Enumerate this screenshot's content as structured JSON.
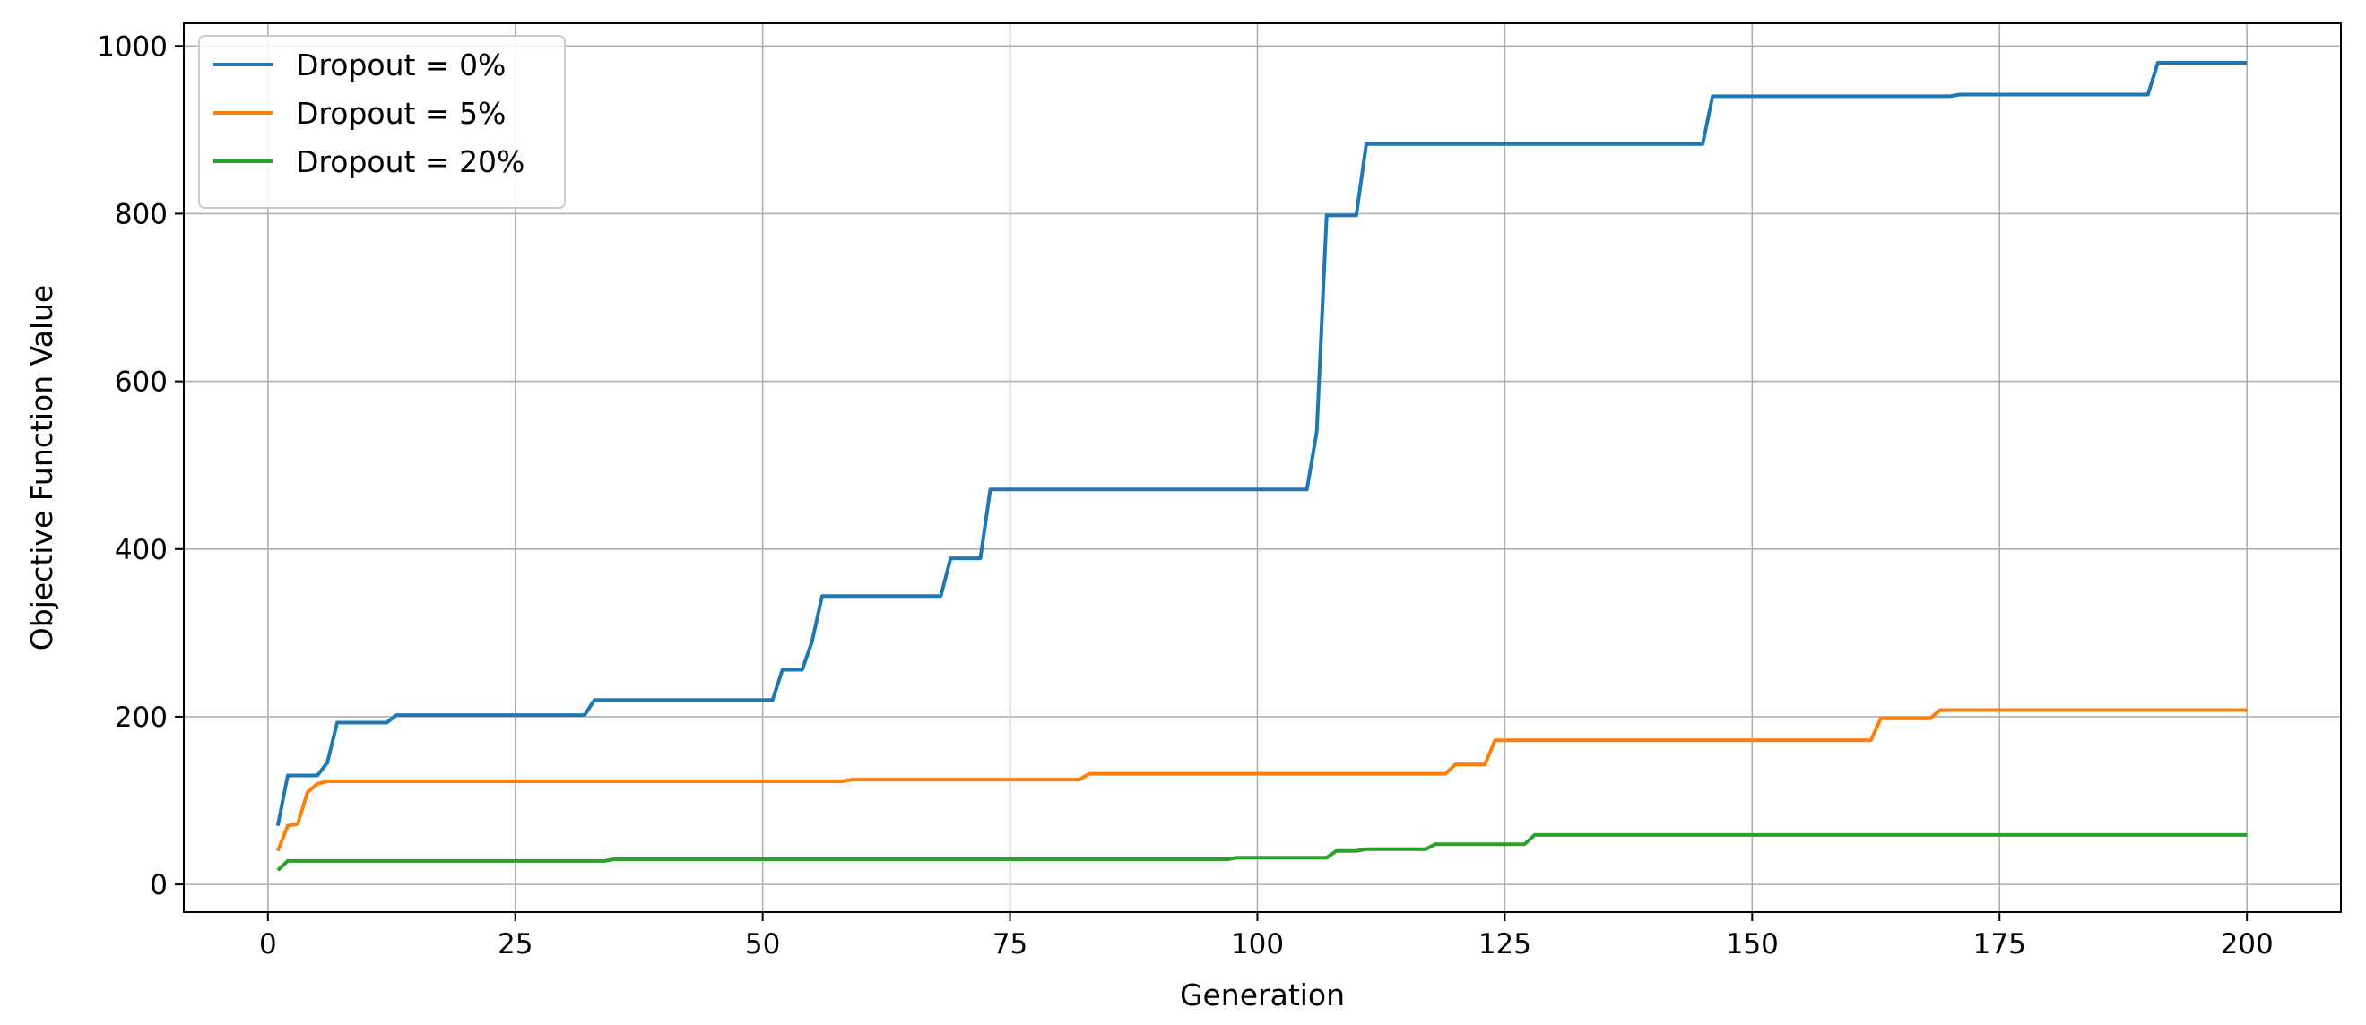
{
  "chart_data": {
    "type": "line",
    "title": "",
    "xlabel": "Generation",
    "ylabel": "Objective Function Value",
    "xlim": [
      -8.5,
      209.5
    ],
    "ylim": [
      -33,
      1027
    ],
    "xticks": [
      0,
      25,
      50,
      75,
      100,
      125,
      150,
      175,
      200
    ],
    "yticks": [
      0,
      200,
      400,
      600,
      800,
      1000
    ],
    "grid": true,
    "legend_position": "top-left",
    "series": [
      {
        "name": "Dropout = 0%",
        "color": "#1f77b4",
        "points": [
          [
            1,
            70
          ],
          [
            2,
            130
          ],
          [
            3,
            130
          ],
          [
            4,
            130
          ],
          [
            5,
            130
          ],
          [
            6,
            145
          ],
          [
            7,
            193
          ],
          [
            8,
            193
          ],
          [
            9,
            193
          ],
          [
            10,
            193
          ],
          [
            11,
            193
          ],
          [
            12,
            193
          ],
          [
            13,
            202
          ],
          [
            14,
            202
          ],
          [
            20,
            202
          ],
          [
            25,
            202
          ],
          [
            30,
            202
          ],
          [
            32,
            202
          ],
          [
            33,
            220
          ],
          [
            40,
            220
          ],
          [
            45,
            220
          ],
          [
            50,
            220
          ],
          [
            51,
            220
          ],
          [
            52,
            256
          ],
          [
            54,
            256
          ],
          [
            55,
            290
          ],
          [
            56,
            344
          ],
          [
            60,
            344
          ],
          [
            65,
            344
          ],
          [
            68,
            344
          ],
          [
            69,
            389
          ],
          [
            72,
            389
          ],
          [
            73,
            471
          ],
          [
            80,
            471
          ],
          [
            90,
            471
          ],
          [
            100,
            471
          ],
          [
            105,
            471
          ],
          [
            106,
            540
          ],
          [
            107,
            798
          ],
          [
            110,
            798
          ],
          [
            111,
            883
          ],
          [
            120,
            883
          ],
          [
            130,
            883
          ],
          [
            140,
            883
          ],
          [
            145,
            883
          ],
          [
            146,
            940
          ],
          [
            160,
            940
          ],
          [
            170,
            940
          ],
          [
            171,
            942
          ],
          [
            185,
            942
          ],
          [
            190,
            942
          ],
          [
            191,
            980
          ],
          [
            200,
            980
          ]
        ]
      },
      {
        "name": "Dropout = 5%",
        "color": "#ff7f0e",
        "points": [
          [
            1,
            40
          ],
          [
            2,
            70
          ],
          [
            3,
            72
          ],
          [
            4,
            110
          ],
          [
            5,
            120
          ],
          [
            6,
            123
          ],
          [
            10,
            123
          ],
          [
            20,
            123
          ],
          [
            30,
            123
          ],
          [
            40,
            123
          ],
          [
            50,
            123
          ],
          [
            58,
            123
          ],
          [
            59,
            125
          ],
          [
            70,
            125
          ],
          [
            80,
            125
          ],
          [
            82,
            125
          ],
          [
            83,
            132
          ],
          [
            90,
            132
          ],
          [
            100,
            132
          ],
          [
            110,
            132
          ],
          [
            119,
            132
          ],
          [
            120,
            143
          ],
          [
            123,
            143
          ],
          [
            124,
            172
          ],
          [
            130,
            172
          ],
          [
            140,
            172
          ],
          [
            150,
            172
          ],
          [
            160,
            172
          ],
          [
            162,
            172
          ],
          [
            163,
            198
          ],
          [
            168,
            198
          ],
          [
            169,
            208
          ],
          [
            180,
            208
          ],
          [
            190,
            208
          ],
          [
            200,
            208
          ]
        ]
      },
      {
        "name": "Dropout = 20%",
        "color": "#2ca02c",
        "points": [
          [
            1,
            17
          ],
          [
            2,
            28
          ],
          [
            10,
            28
          ],
          [
            20,
            28
          ],
          [
            30,
            28
          ],
          [
            34,
            28
          ],
          [
            35,
            30
          ],
          [
            50,
            30
          ],
          [
            60,
            30
          ],
          [
            70,
            30
          ],
          [
            80,
            30
          ],
          [
            90,
            30
          ],
          [
            97,
            30
          ],
          [
            98,
            32
          ],
          [
            107,
            32
          ],
          [
            108,
            40
          ],
          [
            110,
            40
          ],
          [
            111,
            42
          ],
          [
            117,
            42
          ],
          [
            118,
            48
          ],
          [
            127,
            48
          ],
          [
            128,
            59
          ],
          [
            140,
            59
          ],
          [
            150,
            59
          ],
          [
            160,
            59
          ],
          [
            170,
            59
          ],
          [
            180,
            59
          ],
          [
            190,
            59
          ],
          [
            200,
            59
          ]
        ]
      }
    ]
  }
}
